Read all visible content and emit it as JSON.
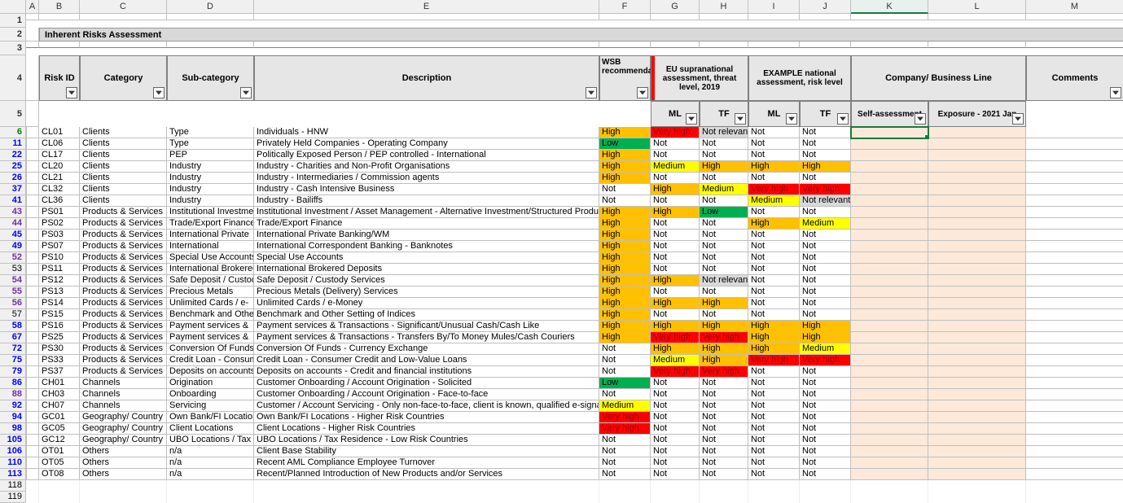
{
  "colors": {
    "bg_white": "#ffffff",
    "header_grey": "#e6e6e6",
    "title_grey": "#d9d9d9",
    "col_head_grey": "#f0f0f0",
    "self_bg": "#fde9d9",
    "border_grey": "#bfbfbf",
    "row_blue": "#0000ff",
    "row_green": "#008000",
    "row_purple": "#7030a0",
    "risk_colors": {
      "high": "#ffc000",
      "medium": "#ffff00",
      "low": "#00b050",
      "veryhigh": "#ff0000",
      "not": "#ffffff",
      "notrelevant": "#d9d9d9"
    },
    "selection_green": "#1a7a3a"
  },
  "columns": [
    "A",
    "B",
    "C",
    "D",
    "E",
    "F",
    "G",
    "H",
    "I",
    "J",
    "K",
    "L",
    "M"
  ],
  "title": "Inherent Risks Assessment",
  "headers": {
    "risk_id": "Risk ID",
    "category": "Category",
    "subcategory": "Sub-category",
    "description": "Description",
    "wsb": "WSB recommendation",
    "eu_top": "EU supranational assessment, threat level, 2019",
    "ex_top": "EXAMPLE national assessment, risk level",
    "company": "Company/ Business Line",
    "comments": "Comments",
    "ml": "ML",
    "tf": "TF",
    "self": "Self-assessment",
    "exposure": "Exposure - 2021 Jan"
  },
  "selected_column_index": 10,
  "selected_cell": {
    "row": 0,
    "col": "self"
  },
  "risk_palette": {
    "High": {
      "bg": "#ffc000",
      "fg": "#000000"
    },
    "Medium": {
      "bg": "#ffff00",
      "fg": "#000000"
    },
    "Low": {
      "bg": "#00b050",
      "fg": "#000000"
    },
    "Very high": {
      "bg": "#ff0000",
      "fg": "#9c0006"
    },
    "Not": {
      "bg": "#ffffff",
      "fg": "#000000"
    },
    "Not relevant": {
      "bg": "#d9d9d9",
      "fg": "#000000"
    }
  },
  "rows": [
    {
      "rn": "6",
      "rc": "green",
      "id": "CL01",
      "cat": "Clients",
      "sub": "Type",
      "desc": "Individuals - HNW",
      "wsb": "High",
      "euml": "Very high",
      "eutf": "Not relevant",
      "exml": "Not",
      "extf": "Not"
    },
    {
      "rn": "11",
      "rc": "blue",
      "id": "CL06",
      "cat": "Clients",
      "sub": "Type",
      "desc": "Privately Held Companies - Operating Company",
      "wsb": "Low",
      "euml": "Not",
      "eutf": "Not",
      "exml": "Not",
      "extf": "Not"
    },
    {
      "rn": "22",
      "rc": "blue",
      "id": "CL17",
      "cat": "Clients",
      "sub": "PEP",
      "desc": "Politically Exposed Person / PEP controlled - International",
      "wsb": "High",
      "euml": "Not",
      "eutf": "Not",
      "exml": "Not",
      "extf": "Not"
    },
    {
      "rn": "25",
      "rc": "blue",
      "id": "CL20",
      "cat": "Clients",
      "sub": "Industry",
      "desc": "Industry - Charities and Non-Profit Organisations",
      "wsb": "High",
      "euml": "Medium",
      "eutf": "High",
      "exml": "High",
      "extf": "High"
    },
    {
      "rn": "26",
      "rc": "blue",
      "id": "CL21",
      "cat": "Clients",
      "sub": "Industry",
      "desc": "Industry - Intermediaries / Commission agents",
      "wsb": "High",
      "euml": "Not",
      "eutf": "Not",
      "exml": "Not",
      "extf": "Not"
    },
    {
      "rn": "37",
      "rc": "blue",
      "id": "CL32",
      "cat": "Clients",
      "sub": "Industry",
      "desc": "Industry - Cash Intensive Business",
      "wsb": "Not",
      "euml": "High",
      "eutf": "Medium",
      "exml": "Very high",
      "extf": "Very high"
    },
    {
      "rn": "41",
      "rc": "blue",
      "id": "CL36",
      "cat": "Clients",
      "sub": "Industry",
      "desc": "Industry - Bailiffs",
      "wsb": "Not",
      "euml": "Not",
      "eutf": "Not",
      "exml": "Medium",
      "extf": "Not relevant"
    },
    {
      "rn": "43",
      "rc": "purple",
      "id": "PS01",
      "cat": "Products & Services",
      "sub": "Institutional Investment",
      "desc": "Institutional Investment / Asset Management - Alternative Investment/Structured Products",
      "wsb": "High",
      "euml": "High",
      "eutf": "Low",
      "exml": "Not",
      "extf": "Not"
    },
    {
      "rn": "44",
      "rc": "purple",
      "id": "PS02",
      "cat": "Products & Services",
      "sub": "Trade/Export Finance",
      "desc": "Trade/Export Finance",
      "wsb": "High",
      "euml": "Not",
      "eutf": "Not",
      "exml": "High",
      "extf": "Medium"
    },
    {
      "rn": "45",
      "rc": "blue",
      "id": "PS03",
      "cat": "Products & Services",
      "sub": "International Private",
      "desc": "International Private Banking/WM",
      "wsb": "High",
      "euml": "Not",
      "eutf": "Not",
      "exml": "Not",
      "extf": "Not"
    },
    {
      "rn": "49",
      "rc": "blue",
      "id": "PS07",
      "cat": "Products & Services",
      "sub": "International",
      "desc": "International Correspondent Banking -  Banknotes",
      "wsb": "High",
      "euml": "Not",
      "eutf": "Not",
      "exml": "Not",
      "extf": "Not"
    },
    {
      "rn": "52",
      "rc": "purple",
      "id": "PS10",
      "cat": "Products & Services",
      "sub": "Special Use Accounts",
      "desc": "Special Use Accounts",
      "wsb": "High",
      "euml": "Not",
      "eutf": "Not",
      "exml": "Not",
      "extf": "Not"
    },
    {
      "rn": "53",
      "rc": "black",
      "id": "PS11",
      "cat": "Products & Services",
      "sub": "International Brokered",
      "desc": "International Brokered Deposits",
      "wsb": "High",
      "euml": "Not",
      "eutf": "Not",
      "exml": "Not",
      "extf": "Not"
    },
    {
      "rn": "54",
      "rc": "purple",
      "id": "PS12",
      "cat": "Products & Services",
      "sub": "Safe Deposit / Custody",
      "desc": "Safe Deposit / Custody Services",
      "wsb": "High",
      "euml": "High",
      "eutf": "Not relevant",
      "exml": "Not",
      "extf": "Not"
    },
    {
      "rn": "55",
      "rc": "purple",
      "id": "PS13",
      "cat": "Products & Services",
      "sub": "Precious Metals",
      "desc": "Precious Metals (Delivery) Services",
      "wsb": "High",
      "euml": "Not",
      "eutf": "Not",
      "exml": "Not",
      "extf": "Not"
    },
    {
      "rn": "56",
      "rc": "purple",
      "id": "PS14",
      "cat": "Products & Services",
      "sub": "Unlimited Cards / e-",
      "desc": "Unlimited Cards / e-Money",
      "wsb": "High",
      "euml": "High",
      "eutf": "High",
      "exml": "Not",
      "extf": "Not"
    },
    {
      "rn": "57",
      "rc": "black",
      "id": "PS15",
      "cat": "Products & Services",
      "sub": "Benchmark and Other",
      "desc": "Benchmark and Other Setting of Indices",
      "wsb": "High",
      "euml": "Not",
      "eutf": "Not",
      "exml": "Not",
      "extf": "Not"
    },
    {
      "rn": "58",
      "rc": "blue",
      "id": "PS16",
      "cat": "Products & Services",
      "sub": "Payment services &",
      "desc": "Payment services & Transactions - Significant/Unusual Cash/Cash Like",
      "wsb": "High",
      "euml": "High",
      "eutf": "High",
      "exml": "High",
      "extf": "High"
    },
    {
      "rn": "67",
      "rc": "blue",
      "id": "PS25",
      "cat": "Products & Services",
      "sub": "Payment services &",
      "desc": "Payment services & Transactions - Transfers By/To Money Mules/Cash Couriers",
      "wsb": "High",
      "euml": "Very high",
      "eutf": "Very high",
      "exml": "High",
      "extf": "High"
    },
    {
      "rn": "72",
      "rc": "blue",
      "id": "PS30",
      "cat": "Products & Services",
      "sub": "Conversion Of Funds -",
      "desc": "Conversion Of Funds - Currency Exchange",
      "wsb": "Not",
      "euml": "High",
      "eutf": "High",
      "exml": "High",
      "extf": "Medium"
    },
    {
      "rn": "75",
      "rc": "blue",
      "id": "PS33",
      "cat": "Products & Services",
      "sub": "Credit Loan - Consumer",
      "desc": "Credit Loan - Consumer Credit and Low-Value Loans",
      "wsb": "Not",
      "euml": "Medium",
      "eutf": "High",
      "exml": "Very high",
      "extf": "Very high"
    },
    {
      "rn": "79",
      "rc": "blue",
      "id": "PS37",
      "cat": "Products & Services",
      "sub": "Deposits on accounts",
      "desc": "Deposits on accounts - Credit and financial institutions",
      "wsb": "Not",
      "euml": "Very high",
      "eutf": "Very high",
      "exml": "Not",
      "extf": "Not"
    },
    {
      "rn": "86",
      "rc": "blue",
      "id": "CH01",
      "cat": "Channels",
      "sub": "Origination",
      "desc": "Customer Onboarding / Account Origination -  Solicited",
      "wsb": "Low",
      "euml": "Not",
      "eutf": "Not",
      "exml": "Not",
      "extf": "Not"
    },
    {
      "rn": "88",
      "rc": "purple",
      "id": "CH03",
      "cat": "Channels",
      "sub": "Onboarding",
      "desc": "Customer Onboarding / Account Origination -  Face-to-face",
      "wsb": "Not",
      "euml": "Not",
      "eutf": "Not",
      "exml": "Not",
      "extf": "Not"
    },
    {
      "rn": "92",
      "rc": "blue",
      "id": "CH07",
      "cat": "Channels",
      "sub": "Servicing",
      "desc": "Customer / Account Servicing - Only non-face-to-face, client is known, qualified e-signature (including",
      "wsb": "Medium",
      "euml": "Not",
      "eutf": "Not",
      "exml": "Not",
      "extf": "Not"
    },
    {
      "rn": "94",
      "rc": "blue",
      "id": "GC01",
      "cat": "Geography/ Country",
      "sub": "Own Bank/FI Locations",
      "desc": "Own Bank/FI Locations -  Higher Risk Countries",
      "wsb": "Very high",
      "euml": "Not",
      "eutf": "Not",
      "exml": "Not",
      "extf": "Not"
    },
    {
      "rn": "98",
      "rc": "blue",
      "id": "GC05",
      "cat": "Geography/ Country",
      "sub": "Client Locations",
      "desc": "Client Locations - Higher Risk Countries",
      "wsb": "Very high",
      "euml": "Not",
      "eutf": "Not",
      "exml": "Not",
      "extf": "Not"
    },
    {
      "rn": "105",
      "rc": "blue",
      "id": "GC12",
      "cat": "Geography/ Country",
      "sub": "UBO Locations / Tax",
      "desc": "UBO Locations / Tax Residence - Low Risk Countries",
      "wsb": "Not",
      "euml": "Not",
      "eutf": "Not",
      "exml": "Not",
      "extf": "Not"
    },
    {
      "rn": "106",
      "rc": "blue",
      "id": "OT01",
      "cat": "Others",
      "sub": "n/a",
      "desc": "Client Base Stability",
      "wsb": "Not",
      "euml": "Not",
      "eutf": "Not",
      "exml": "Not",
      "extf": "Not"
    },
    {
      "rn": "110",
      "rc": "blue",
      "id": "OT05",
      "cat": "Others",
      "sub": "n/a",
      "desc": "Recent AML Compliance Employee Turnover",
      "wsb": "Not",
      "euml": "Not",
      "eutf": "Not",
      "exml": "Not",
      "extf": "Not"
    },
    {
      "rn": "113",
      "rc": "blue",
      "id": "OT08",
      "cat": "Others",
      "sub": "n/a",
      "desc": "Recent/Planned Introduction of New Products and/or Services",
      "wsb": "Not",
      "euml": "Not",
      "eutf": "Not",
      "exml": "Not",
      "extf": "Not"
    }
  ],
  "trailing_rows": [
    "118",
    "119"
  ]
}
